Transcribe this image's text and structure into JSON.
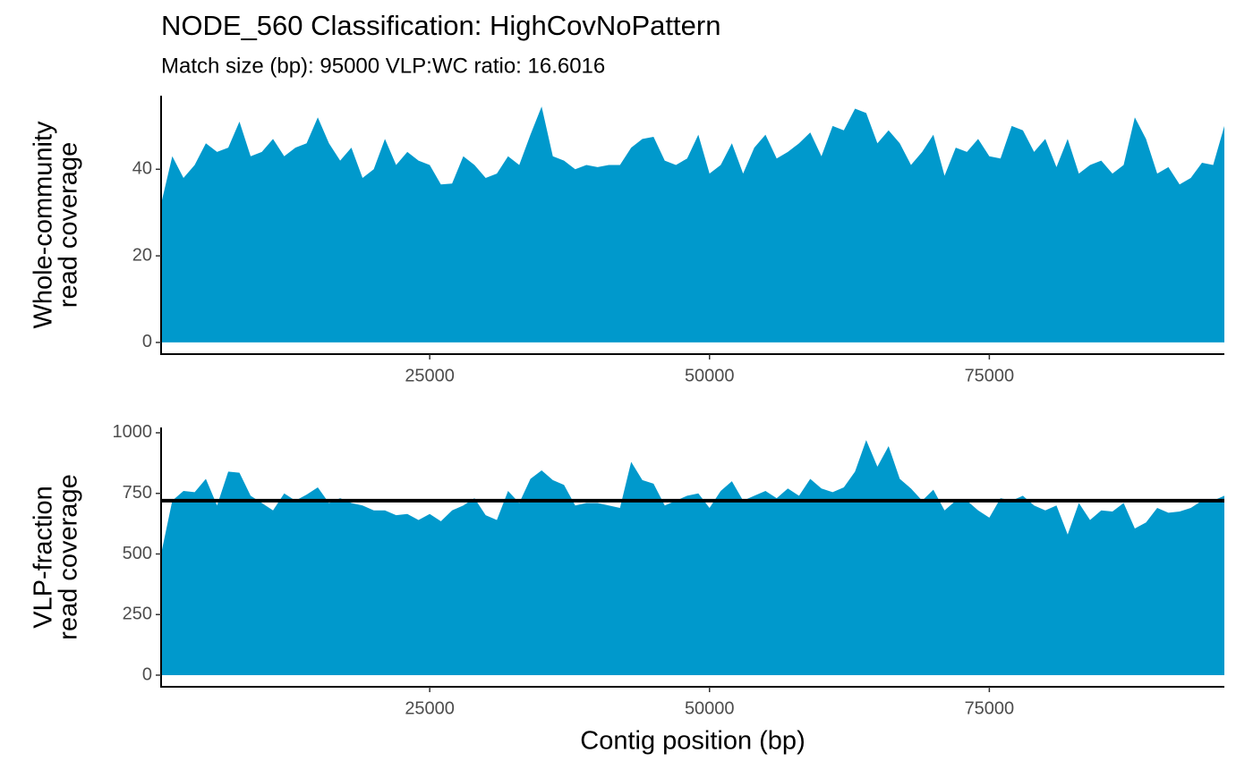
{
  "chart_data": [
    {
      "type": "area",
      "title": "NODE_560 Classification: HighCovNoPattern",
      "subtitle": "Match size (bp): 95000 VLP:WC ratio: 16.6016",
      "ylabel": [
        "Whole-community",
        "read coverage"
      ],
      "color": "#0099cc",
      "x": [
        1000,
        2000,
        3000,
        4000,
        5000,
        6000,
        7000,
        8000,
        9000,
        10000,
        11000,
        12000,
        13000,
        14000,
        15000,
        16000,
        17000,
        18000,
        19000,
        20000,
        21000,
        22000,
        23000,
        24000,
        25000,
        26000,
        27000,
        28000,
        29000,
        30000,
        31000,
        32000,
        33000,
        34000,
        35000,
        36000,
        37000,
        38000,
        39000,
        40000,
        41000,
        42000,
        43000,
        44000,
        45000,
        46000,
        47000,
        48000,
        49000,
        50000,
        51000,
        52000,
        53000,
        54000,
        55000,
        56000,
        57000,
        58000,
        59000,
        60000,
        61000,
        62000,
        63000,
        64000,
        65000,
        66000,
        67000,
        68000,
        69000,
        70000,
        71000,
        72000,
        73000,
        74000,
        75000,
        76000,
        77000,
        78000,
        79000,
        80000,
        81000,
        82000,
        83000,
        84000,
        85000,
        86000,
        87000,
        88000,
        89000,
        90000,
        91000,
        92000,
        93000,
        94000,
        95000,
        96000
      ],
      "values": [
        32,
        43,
        38,
        41,
        46,
        44,
        45,
        51,
        43,
        44,
        47,
        43,
        45,
        46,
        52,
        46,
        42,
        45,
        38,
        40,
        47,
        41,
        44,
        42,
        41,
        36.5,
        36.7,
        43,
        41,
        38,
        39,
        43,
        41,
        48,
        54.5,
        43,
        42,
        40,
        41,
        40.5,
        41,
        41,
        45,
        47,
        47.5,
        42,
        41,
        42.5,
        48,
        39,
        41,
        46,
        39,
        45,
        48,
        42.5,
        44,
        46,
        48.5,
        43,
        50,
        49,
        54,
        53,
        46,
        49,
        46,
        41,
        44,
        48,
        38.5,
        45,
        44,
        47,
        43,
        42.5,
        50,
        49,
        44,
        47,
        40.5,
        47,
        39,
        41,
        42,
        39,
        41,
        52,
        47,
        39,
        40.5,
        36.5,
        38,
        41.5,
        41,
        50
      ],
      "xlim": [
        1000,
        96000
      ],
      "ylim": [
        -2.7,
        57
      ],
      "yticks": [
        0,
        20,
        40
      ],
      "xticks": [
        25000,
        50000,
        75000
      ]
    },
    {
      "type": "area",
      "xlabel": "Contig position (bp)",
      "ylabel": [
        "VLP-fraction",
        "read coverage"
      ],
      "color": "#0099cc",
      "x": [
        1000,
        2000,
        3000,
        4000,
        5000,
        6000,
        7000,
        8000,
        9000,
        10000,
        11000,
        12000,
        13000,
        14000,
        15000,
        16000,
        17000,
        18000,
        19000,
        20000,
        21000,
        22000,
        23000,
        24000,
        25000,
        26000,
        27000,
        28000,
        29000,
        30000,
        31000,
        32000,
        33000,
        34000,
        35000,
        36000,
        37000,
        38000,
        39000,
        40000,
        41000,
        42000,
        43000,
        44000,
        45000,
        46000,
        47000,
        48000,
        49000,
        50000,
        51000,
        52000,
        53000,
        54000,
        55000,
        56000,
        57000,
        58000,
        59000,
        60000,
        61000,
        62000,
        63000,
        64000,
        65000,
        66000,
        67000,
        68000,
        69000,
        70000,
        71000,
        72000,
        73000,
        74000,
        75000,
        76000,
        77000,
        78000,
        79000,
        80000,
        81000,
        82000,
        83000,
        84000,
        85000,
        86000,
        87000,
        88000,
        89000,
        90000,
        91000,
        92000,
        93000,
        94000,
        95000,
        96000
      ],
      "values": [
        500,
        720,
        760,
        755,
        810,
        700,
        840,
        835,
        740,
        710,
        680,
        750,
        720,
        745,
        775,
        710,
        730,
        710,
        700,
        680,
        680,
        660,
        665,
        640,
        665,
        635,
        680,
        700,
        730,
        660,
        640,
        760,
        710,
        810,
        845,
        805,
        785,
        700,
        710,
        710,
        700,
        690,
        880,
        805,
        790,
        700,
        720,
        740,
        750,
        690,
        760,
        800,
        720,
        740,
        760,
        730,
        770,
        740,
        810,
        770,
        755,
        775,
        840,
        970,
        860,
        945,
        810,
        770,
        720,
        765,
        680,
        720,
        720,
        680,
        650,
        730,
        720,
        740,
        700,
        680,
        700,
        580,
        710,
        640,
        680,
        675,
        710,
        605,
        630,
        690,
        670,
        675,
        690,
        720,
        720,
        740
      ],
      "hline": 720,
      "xlim": [
        1000,
        96000
      ],
      "ylim": [
        -48,
        1022
      ],
      "yticks": [
        0,
        250,
        500,
        750,
        1000
      ],
      "xticks": [
        25000,
        50000,
        75000
      ]
    }
  ]
}
